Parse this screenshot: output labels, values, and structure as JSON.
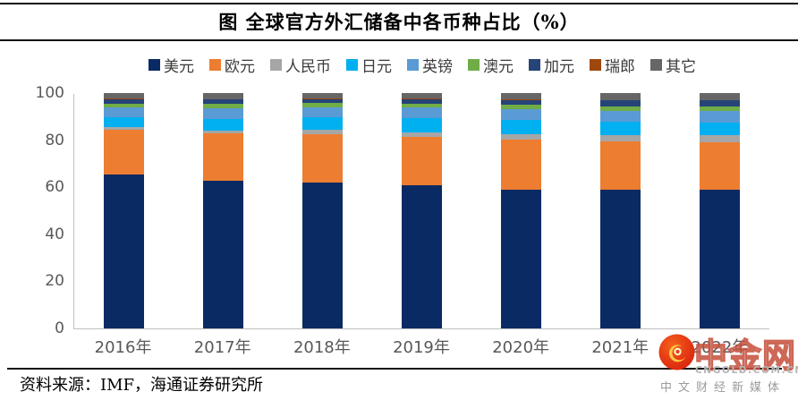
{
  "header": {
    "title": "图 全球官方外汇储备中各币种占比（%）"
  },
  "source_note": {
    "label": "资料来源：IMF，海通证券研究所"
  },
  "watermark": {
    "logo_icon": "gold-swirl-icon",
    "logo_text": "中金网",
    "logo_url_text": "CNGOLD.COM.CN",
    "tagline": "中文财经新媒体",
    "circle_color_outer": "#d8250e",
    "circle_color_inner": "#f4641c",
    "swirl_color": "#ffd24d"
  },
  "axes": {
    "tick_color": "#595959",
    "axis_line_color": "#bfbfbf"
  },
  "chart_data": {
    "type": "bar",
    "stacked": true,
    "title": "图 全球官方外汇储备中各币种占比（%）",
    "xlabel": "",
    "ylabel": "",
    "ylim": [
      0,
      100
    ],
    "yticks": [
      0,
      20,
      40,
      60,
      80,
      100
    ],
    "grid": false,
    "legend_position": "top",
    "categories": [
      "2016年",
      "2017年",
      "2018年",
      "2019年",
      "2020年",
      "2021年",
      "2022年"
    ],
    "series": [
      {
        "name": "美元",
        "color": "#0a2a64",
        "values": [
          65.4,
          62.7,
          61.8,
          60.8,
          58.9,
          58.8,
          59.0
        ]
      },
      {
        "name": "欧元",
        "color": "#ed7d31",
        "values": [
          19.1,
          20.2,
          20.7,
          20.6,
          21.3,
          20.6,
          20.1
        ]
      },
      {
        "name": "人民币",
        "color": "#a6a6a6",
        "values": [
          1.1,
          1.2,
          1.9,
          1.9,
          2.3,
          2.8,
          2.9
        ]
      },
      {
        "name": "日元",
        "color": "#00b0f0",
        "values": [
          4.0,
          4.9,
          5.2,
          5.9,
          6.0,
          5.6,
          5.4
        ]
      },
      {
        "name": "英镑",
        "color": "#5b9bd5",
        "values": [
          4.3,
          4.5,
          4.5,
          4.6,
          4.7,
          4.8,
          5.0
        ]
      },
      {
        "name": "澳元",
        "color": "#70ad47",
        "values": [
          1.7,
          1.8,
          1.6,
          1.7,
          1.8,
          1.8,
          1.9
        ]
      },
      {
        "name": "加元",
        "color": "#264478",
        "values": [
          1.9,
          2.0,
          1.8,
          1.9,
          2.1,
          2.4,
          2.5
        ]
      },
      {
        "name": "瑞郎",
        "color": "#9e480e",
        "values": [
          0.2,
          0.2,
          0.1,
          0.2,
          0.2,
          0.2,
          0.2
        ]
      },
      {
        "name": "其它",
        "color": "#666666",
        "values": [
          2.3,
          2.4,
          2.4,
          2.5,
          2.7,
          3.0,
          3.0
        ]
      }
    ]
  }
}
